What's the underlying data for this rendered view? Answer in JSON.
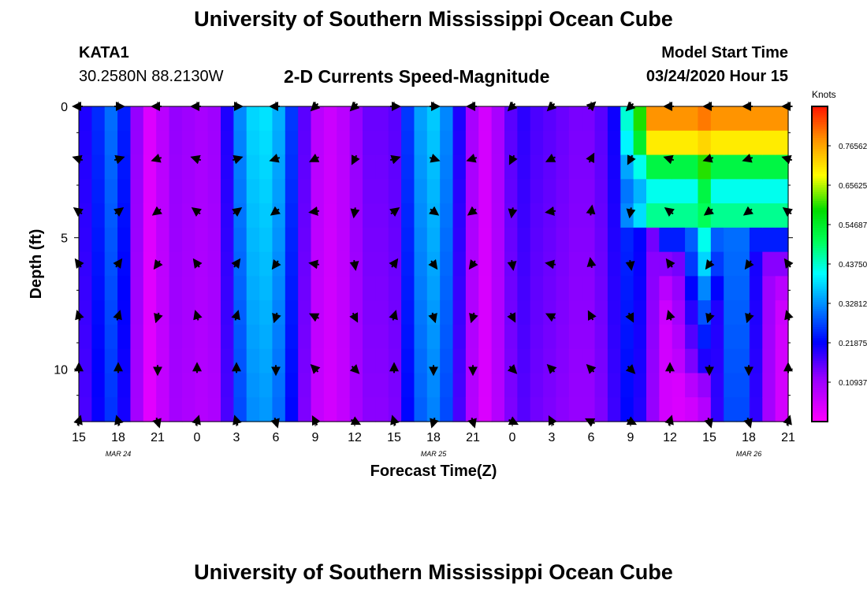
{
  "page": {
    "title": "University of Southern Mississippi Ocean Cube",
    "footer_title": "University of Southern Mississippi Ocean Cube",
    "station_id": "KATA1",
    "station_coords": "30.2580N 88.2130W",
    "chart_subtitle": "2-D Currents Speed-Magnitude",
    "model_label": "Model Start Time",
    "model_time": "03/24/2020 Hour 15"
  },
  "chart_data": {
    "type": "heatmap",
    "title": "2-D Currents Speed-Magnitude",
    "xlabel": "Forecast Time(Z)",
    "ylabel": "Depth (ft)",
    "x_ticks": [
      "15",
      "18",
      "21",
      "0",
      "3",
      "6",
      "9",
      "12",
      "15",
      "18",
      "21",
      "0",
      "3",
      "6",
      "9",
      "12",
      "15",
      "18",
      "21"
    ],
    "date_labels": [
      {
        "text": "MAR 24",
        "at_hour": 3
      },
      {
        "text": "MAR 25",
        "at_hour": 27
      },
      {
        "text": "MAR 26",
        "at_hour": 51
      }
    ],
    "x_range_hours": [
      0,
      54
    ],
    "y_ticks": [
      0,
      5,
      10
    ],
    "ylim": [
      0,
      12
    ],
    "colorbar": {
      "unit": "Knots",
      "range": [
        0,
        0.875
      ],
      "tick_values": [
        0.10937,
        0.21875,
        0.32812,
        0.4375,
        0.54687,
        0.65625,
        0.76562
      ],
      "tick_labels": [
        "0.10937",
        "0.21875",
        "0.32812",
        "0.43750",
        "0.54687",
        "0.65625",
        "0.76562"
      ]
    },
    "speed_grid": {
      "depths_ft": [
        0,
        1,
        2,
        3,
        4,
        5,
        6,
        7,
        8,
        9,
        10,
        11,
        12
      ],
      "hours": [
        0,
        1,
        2,
        3,
        4,
        5,
        6,
        7,
        8,
        9,
        10,
        11,
        12,
        13,
        14,
        15,
        16,
        17,
        18,
        19,
        20,
        21,
        22,
        23,
        24,
        25,
        26,
        27,
        28,
        29,
        30,
        31,
        32,
        33,
        34,
        35,
        36,
        37,
        38,
        39,
        40,
        41,
        42,
        43,
        44,
        45,
        46,
        47,
        48,
        49,
        50,
        51,
        52,
        53,
        54
      ],
      "profile_by_hour": [
        0.2,
        0.25,
        0.3,
        0.24,
        0.12,
        0.04,
        0.08,
        0.12,
        0.11,
        0.1,
        0.11,
        0.2,
        0.32,
        0.38,
        0.39,
        0.35,
        0.26,
        0.16,
        0.08,
        0.06,
        0.08,
        0.12,
        0.15,
        0.15,
        0.16,
        0.26,
        0.34,
        0.37,
        0.32,
        0.2,
        0.1,
        0.05,
        0.1,
        0.16,
        0.19,
        0.17,
        0.16,
        0.15,
        0.14,
        0.14,
        0.16,
        0.21,
        0.26,
        0.23,
        0.14,
        0.06,
        0.05,
        0.06,
        0.1,
        0.22,
        0.32,
        0.32,
        0.22,
        0.12,
        0.06
      ],
      "surface_layer_after_hour_42": {
        "layer_values_by_depth": [
          0.78,
          0.7,
          0.52,
          0.42,
          0.47,
          0.24,
          0.13,
          0.08,
          0.06,
          0.05,
          0.05,
          0.04,
          0.04
        ],
        "plume_center_hour": 48,
        "plume_peak_values": [
          0.8,
          0.72,
          0.6,
          0.52,
          0.5,
          0.42,
          0.38,
          0.32,
          0.28,
          0.24,
          0.2,
          0.12,
          0.08
        ]
      }
    },
    "vector_rows_depth_ft": [
      0,
      2,
      4,
      6,
      8,
      10,
      12
    ],
    "vector_columns_hour": [
      0,
      3,
      6,
      9,
      12,
      15,
      18,
      21,
      24,
      27,
      30,
      33,
      36,
      39,
      42,
      45,
      48,
      51,
      54
    ],
    "vector_direction_pattern_deg": [
      180,
      0,
      180,
      180,
      0,
      180,
      225,
      225,
      0,
      0,
      180,
      225,
      225,
      45,
      225,
      180,
      180,
      180,
      180
    ]
  }
}
